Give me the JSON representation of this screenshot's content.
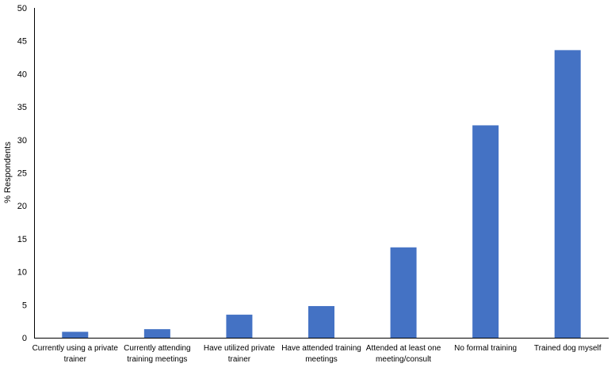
{
  "chart_data": {
    "type": "bar",
    "categories": [
      [
        "Currently using a private",
        "trainer"
      ],
      [
        "Currently attending",
        "training meetings"
      ],
      [
        "Have utilized private",
        "trainer"
      ],
      [
        "Have attended training",
        "meetings"
      ],
      [
        "Attended at least one",
        "meeting/consult"
      ],
      [
        "No formal training"
      ],
      [
        "Trained dog myself"
      ]
    ],
    "values": [
      0.9,
      1.3,
      3.5,
      4.8,
      13.7,
      32.2,
      43.6
    ],
    "ylabel": "% Respondents",
    "xlabel": "",
    "ylim": [
      0,
      50
    ],
    "yticks": [
      0,
      5,
      10,
      15,
      20,
      25,
      30,
      35,
      40,
      45,
      50
    ],
    "bar_color": "#4472C4",
    "grid": false
  }
}
